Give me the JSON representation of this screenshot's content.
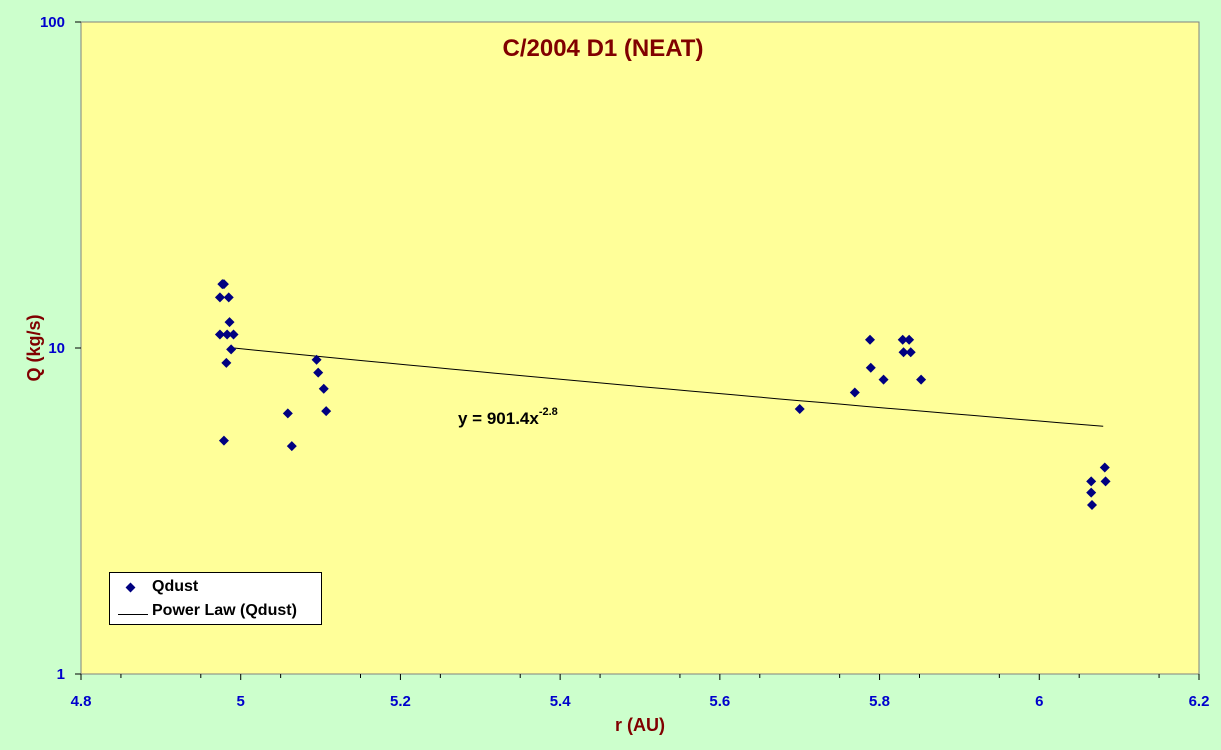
{
  "chart_data": {
    "type": "scatter",
    "title": "C/2004 D1 (NEAT)",
    "xlabel": "r (AU)",
    "ylabel": "Q (kg/s)",
    "xlim": [
      4.8,
      6.2
    ],
    "ylim": [
      1,
      100
    ],
    "yscale": "log",
    "x_ticks": [
      "4.8",
      "5",
      "5.2",
      "5.4",
      "5.6",
      "5.8",
      "6",
      "6.2"
    ],
    "y_ticks": [
      "1",
      "10",
      "100"
    ],
    "grid": false,
    "colors": {
      "plot_bg": "#ffff99",
      "page_bg": "#ccffcc",
      "marker": "#000080",
      "title": "#800000",
      "ticks": "#0000cc"
    },
    "series": [
      {
        "name": "Qdust",
        "x": [
          4.977,
          4.979,
          4.974,
          4.985,
          4.974,
          4.986,
          4.983,
          4.991,
          4.988,
          4.982,
          4.979,
          5.059,
          5.064,
          5.095,
          5.097,
          5.104,
          5.107,
          5.7,
          5.769,
          5.788,
          5.789,
          5.805,
          5.829,
          5.83,
          5.837,
          5.839,
          5.852,
          6.065,
          6.065,
          6.066,
          6.082,
          6.083
        ],
        "y": [
          15.7,
          15.7,
          14.3,
          14.3,
          11.0,
          12.0,
          11.0,
          11.0,
          9.9,
          9.0,
          5.2,
          6.3,
          5.0,
          9.2,
          8.4,
          7.5,
          6.4,
          6.5,
          7.3,
          10.6,
          8.7,
          8.0,
          10.6,
          9.7,
          10.6,
          9.7,
          8.0,
          3.9,
          3.6,
          3.3,
          4.3,
          3.9
        ]
      }
    ],
    "trendline": {
      "name": "Power Law (Qdust)",
      "type": "power",
      "a": 901.4,
      "b": -2.8,
      "x_range": [
        4.99,
        6.08
      ],
      "equation_base": "y = 901.4x",
      "equation_exp": "-2.8"
    },
    "legend_position": "bottom-left"
  }
}
